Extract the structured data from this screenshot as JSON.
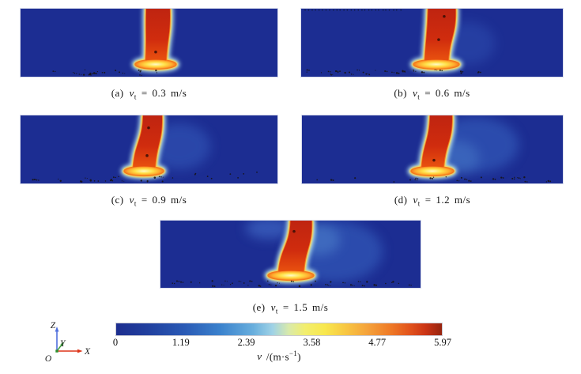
{
  "figure": {
    "panels": [
      {
        "label": "(a)",
        "var": "v",
        "sub": "t",
        "rest": "= 0.3 m/s",
        "velocity_m_per_s": 0.3
      },
      {
        "label": "(b)",
        "var": "v",
        "sub": "t",
        "rest": "= 0.6 m/s",
        "velocity_m_per_s": 0.6
      },
      {
        "label": "(c)",
        "var": "v",
        "sub": "t",
        "rest": "= 0.9 m/s",
        "velocity_m_per_s": 0.9
      },
      {
        "label": "(d)",
        "var": "v",
        "sub": "t",
        "rest": "= 1.2 m/s",
        "velocity_m_per_s": 1.2
      },
      {
        "label": "(e)",
        "var": "v",
        "sub": "t",
        "rest": "= 1.5 m/s",
        "velocity_m_per_s": 1.5
      }
    ],
    "colorbar": {
      "ticks": [
        "0",
        "1.19",
        "2.39",
        "3.58",
        "4.77",
        "5.97"
      ],
      "label_var": "v",
      "label_unit_pre": " /(m·s",
      "label_exp": "−1",
      "label_unit_post": ")"
    },
    "axes": {
      "z": "Z",
      "y": "Y",
      "x": "X",
      "origin": "O"
    },
    "palette": {
      "background": "#1c2d92",
      "jet_core_top": "#bf2410",
      "jet_core": "#d02c0e",
      "jet_core_bottom": "#e8500f",
      "jet_rim_orange": "#f4781c",
      "jet_rim_yellow": "#ffd84a",
      "jet_halo": "#b8e6f2",
      "pool_center": "#fff9c8",
      "pool_yellow": "#ffe24a",
      "particle": "#17110d",
      "axis_x_color": "#dd3418",
      "axis_y_color": "#3f9f3f",
      "axis_z_color": "#5070dd",
      "origin_dot_color": "#2d8f2d"
    }
  },
  "chart_data": {
    "type": "heatmap",
    "layout": "5 CFD velocity-contour panels: two top, two middle, one centered bottom; shared horizontal colorbar and XYZ axis triad at bottom; legend/colorbar below panels",
    "panels": [
      {
        "label": "(a)",
        "caption": "(a) vt = 0.3 m/s",
        "traverse_speed_m_per_s": 0.3
      },
      {
        "label": "(b)",
        "caption": "(b) vt = 0.6 m/s",
        "traverse_speed_m_per_s": 0.6
      },
      {
        "label": "(c)",
        "caption": "(c) vt = 0.9 m/s",
        "traverse_speed_m_per_s": 0.9
      },
      {
        "label": "(d)",
        "caption": "(d) vt = 1.2 m/s",
        "traverse_speed_m_per_s": 1.2
      },
      {
        "label": "(e)",
        "caption": "(e) vt = 1.5 m/s",
        "traverse_speed_m_per_s": 1.5
      }
    ],
    "colorbar": {
      "quantity": "v",
      "unit": "m·s−1",
      "min": 0,
      "max": 5.97,
      "ticks": [
        0,
        1.19,
        2.39,
        3.58,
        4.77,
        5.97
      ]
    },
    "coordinate_axes": [
      "Z",
      "Y",
      "X"
    ],
    "origin_label": "O",
    "content": "Each panel shows a high-velocity jet plume (red, near the 5.97 m/s top of scale) entering the dark-blue (~0 m/s) rectangular domain from the top edge and impinging on a bright yellow zone near the bottom; small dark particles are scattered along the lower boundary, with the plume leaning and the disturbed light-blue wake growing as vt increases."
  }
}
